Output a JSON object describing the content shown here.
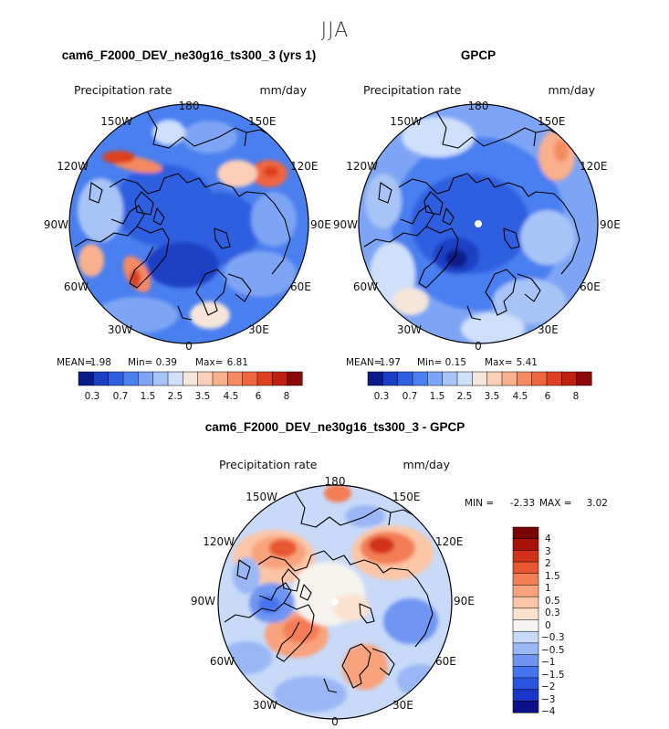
{
  "figure": {
    "season": "JJA",
    "variable": "Precipitation rate",
    "units": "mm/day"
  },
  "chart_data": [
    {
      "type": "heatmap",
      "projection": "north-polar-stereographic",
      "title": "cam6_F2000_DEV_ne30g16_ts300_3 (yrs 1)",
      "subtitle": "Precipitation rate",
      "units": "mm/day",
      "stats": {
        "mean_label": "MEAN=",
        "mean": "1.98",
        "min_label": "Min=",
        "min": "0.39",
        "max_label": "Max=",
        "max": "6.81"
      },
      "colorbar_ticks": [
        "0.3",
        "0.7",
        "1.5",
        "2.5",
        "3.5",
        "4.5",
        "6",
        "8"
      ],
      "lon_labels": [
        "180",
        "150E",
        "120E",
        "90E",
        "60E",
        "30E",
        "0",
        "30W",
        "60W",
        "90W",
        "120W",
        "150W"
      ]
    },
    {
      "type": "heatmap",
      "projection": "north-polar-stereographic",
      "title": "GPCP",
      "subtitle": "Precipitation rate",
      "units": "mm/day",
      "stats": {
        "mean_label": "MEAN=",
        "mean": "1.97",
        "min_label": "Min=",
        "min": "0.15",
        "max_label": "Max=",
        "max": "5.41"
      },
      "colorbar_ticks": [
        "0.3",
        "0.7",
        "1.5",
        "2.5",
        "3.5",
        "4.5",
        "6",
        "8"
      ],
      "lon_labels": [
        "180",
        "150E",
        "120E",
        "90E",
        "60E",
        "30E",
        "0",
        "30W",
        "60W",
        "90W",
        "120W",
        "150W"
      ]
    },
    {
      "type": "heatmap",
      "projection": "north-polar-stereographic",
      "title": "cam6_F2000_DEV_ne30g16_ts300_3 - GPCP",
      "subtitle": "Precipitation rate",
      "units": "mm/day",
      "stats": {
        "min_label": "MIN =",
        "min": "-2.33",
        "max_label": "MAX =",
        "max": "3.02"
      },
      "colorbar_ticks": [
        "4",
        "3",
        "2",
        "1.5",
        "1",
        "0.5",
        "0.3",
        "0",
        "−0.3",
        "−0.5",
        "−1",
        "−1.5",
        "−2",
        "−3",
        "−4"
      ],
      "lon_labels": [
        "180",
        "150E",
        "120E",
        "90E",
        "60E",
        "30E",
        "0",
        "30W",
        "60W",
        "90W",
        "120W",
        "150W"
      ]
    }
  ],
  "colors": {
    "seq_scale": [
      "#0a1a8a",
      "#1a3fc4",
      "#2e5fe0",
      "#4a7ff0",
      "#7ea5f5",
      "#a8c4f7",
      "#cfe0fb",
      "#f6e6da",
      "#fccfb8",
      "#f9b08c",
      "#f58a62",
      "#ee6540",
      "#de3f1f",
      "#c02010",
      "#8a0808"
    ],
    "diff_scale": [
      "#0a1088",
      "#1a36c8",
      "#2c54e2",
      "#4673ee",
      "#6f95f2",
      "#9ab6f5",
      "#c8daf8",
      "#f7f3ee",
      "#fbe2cf",
      "#fbc6a6",
      "#f8a37c",
      "#f37e55",
      "#e95632",
      "#d23018",
      "#a81208",
      "#7a0404"
    ],
    "coast": "#000000"
  }
}
